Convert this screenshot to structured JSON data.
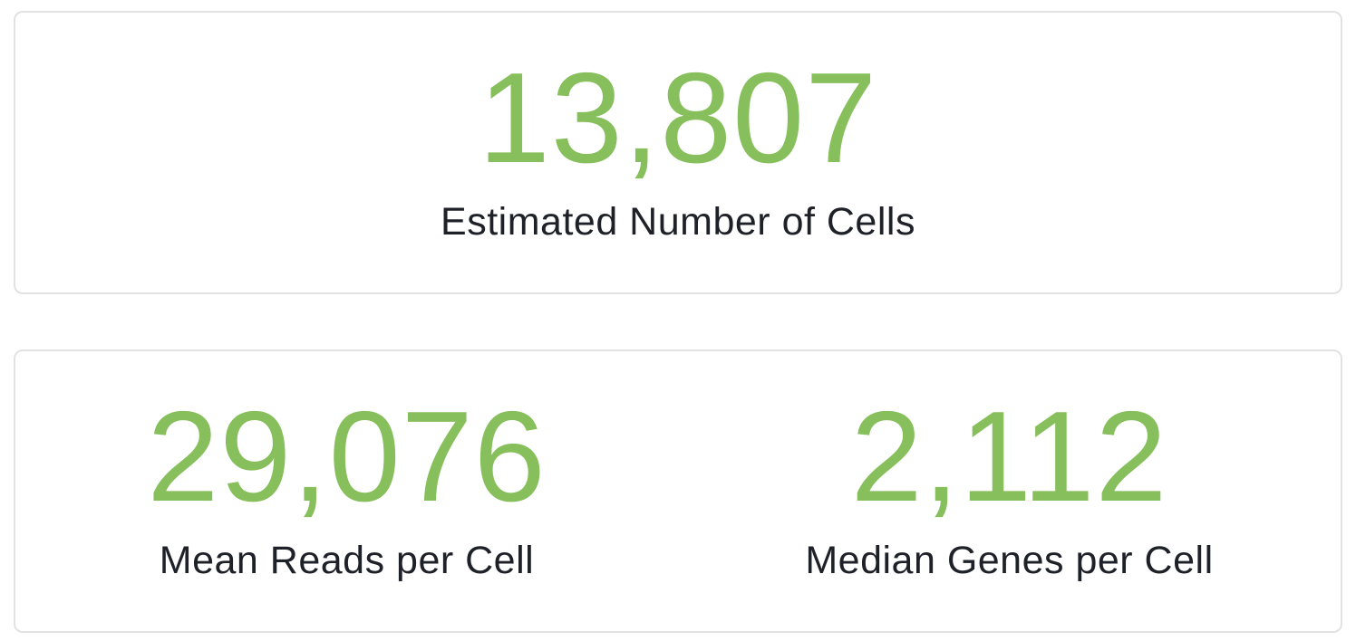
{
  "summary": {
    "cells": {
      "value": "13,807",
      "label": "Estimated Number of Cells"
    },
    "reads": {
      "value": "29,076",
      "label": "Mean Reads per Cell"
    },
    "genes": {
      "value": "2,112",
      "label": "Median Genes per Cell"
    }
  },
  "colors": {
    "value": "#86bf5b",
    "label": "#1f2128",
    "border": "#e2e2e2"
  }
}
